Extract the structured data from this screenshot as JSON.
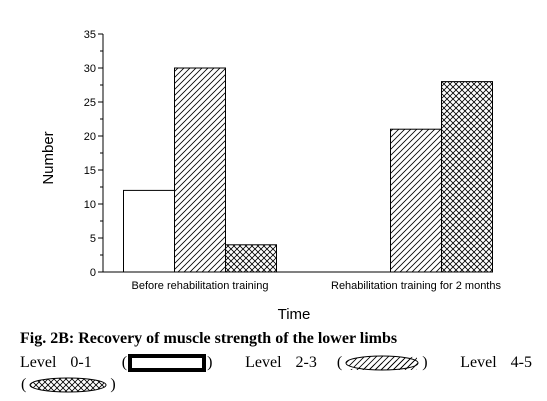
{
  "chart_data": {
    "type": "bar",
    "categories": [
      "Before rehabilitation training",
      "Rehabilitation training for 2 months"
    ],
    "series": [
      {
        "name": "Level 0-1",
        "values": [
          12,
          0
        ],
        "pattern": "none"
      },
      {
        "name": "Level 2-3",
        "values": [
          30,
          21
        ],
        "pattern": "diagonal-hatch"
      },
      {
        "name": "Level 4-5",
        "values": [
          4,
          28
        ],
        "pattern": "cross-hatch"
      }
    ],
    "xlabel": "Time",
    "ylabel": "Number",
    "ylim": [
      0,
      35
    ],
    "yticks": [
      "0",
      "5",
      "10",
      "15",
      "20",
      "25",
      "30",
      "35"
    ],
    "grid": false,
    "colors": {
      "bar_fill": "#ffffff",
      "bar_stroke": "#000000"
    }
  },
  "caption": "Fig. 2B: Recovery of muscle strength of the lower limbs",
  "legend": {
    "items": [
      {
        "label": "Level 0-1",
        "pattern": "none"
      },
      {
        "label": "Level 2-3",
        "pattern": "diagonal-hatch"
      },
      {
        "label": "Level 4-5",
        "pattern": "cross-hatch"
      }
    ],
    "open_paren": "(",
    "close_paren": ")"
  }
}
